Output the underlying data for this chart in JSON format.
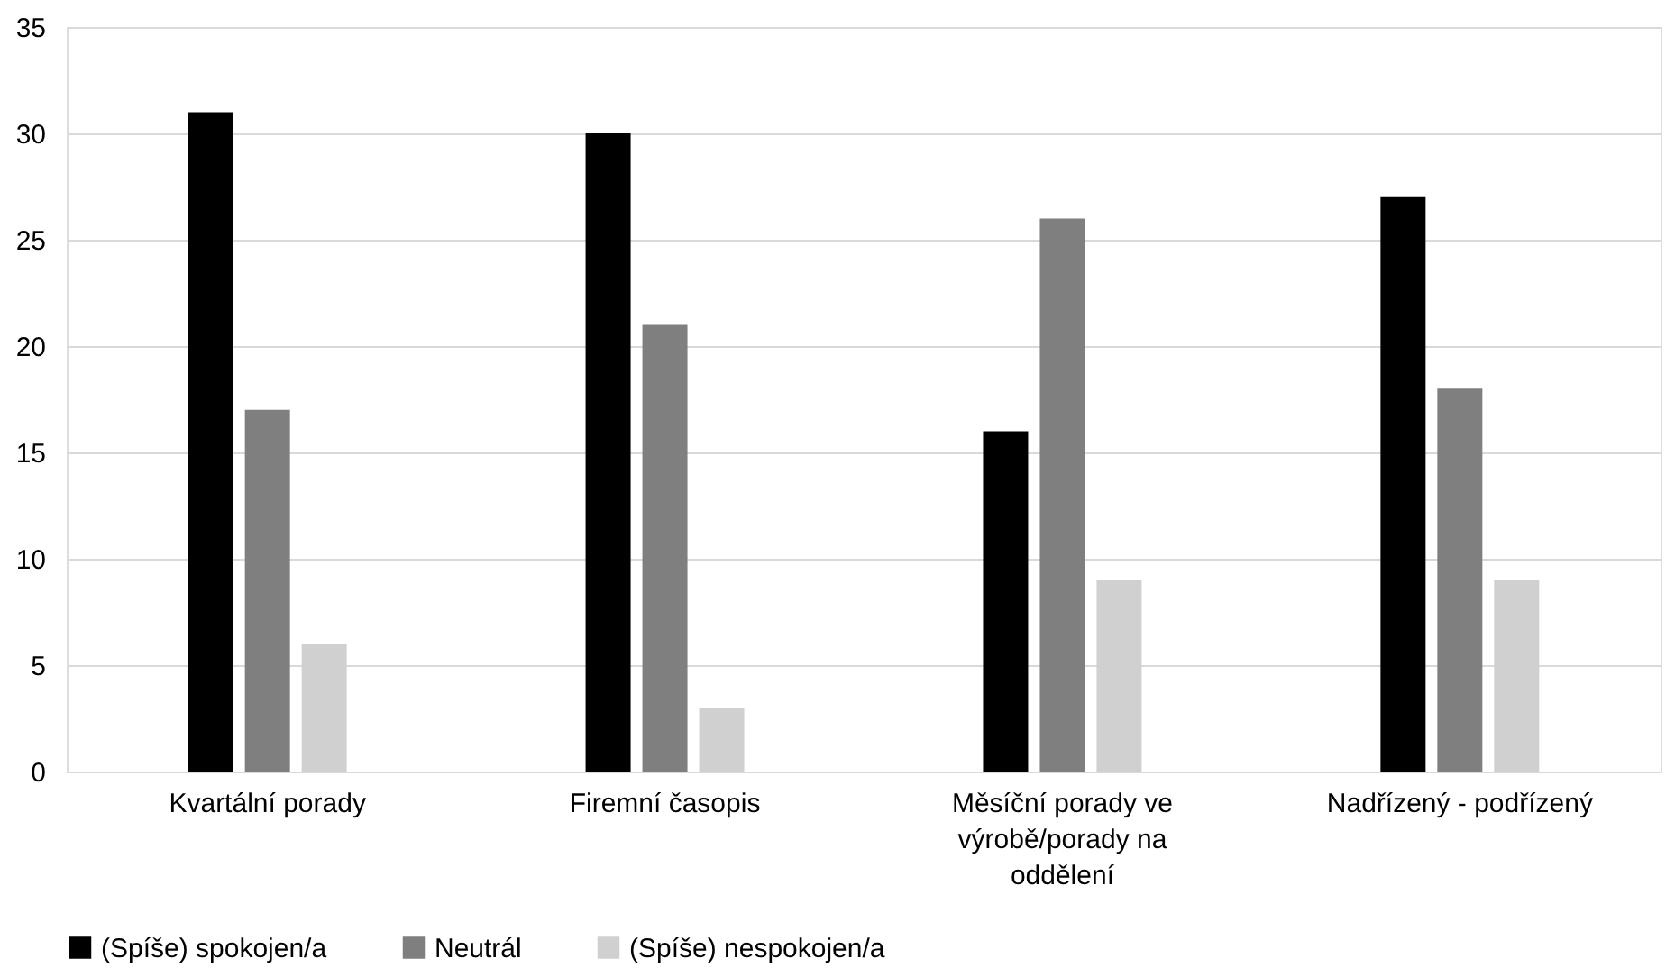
{
  "chart_data": {
    "type": "bar",
    "categories": [
      "Kvartální porady",
      "Firemní časopis",
      "Měsíční porady ve výrobě/porady na oddělení",
      "Nadřízený - podřízený"
    ],
    "series": [
      {
        "name": "(Spíše) spokojen/a",
        "color": "#000000",
        "values": [
          31,
          30,
          16,
          27
        ]
      },
      {
        "name": "Neutrál",
        "color": "#7f7f7f",
        "values": [
          17,
          21,
          26,
          18
        ]
      },
      {
        "name": "(Spíše) nespokojen/a",
        "color": "#d0d0d0",
        "values": [
          6,
          3,
          9,
          9
        ]
      }
    ],
    "ylim": [
      0,
      35
    ],
    "yticks": [
      0,
      5,
      10,
      15,
      20,
      25,
      30,
      35
    ],
    "grid": "y",
    "legend": "bottom"
  }
}
